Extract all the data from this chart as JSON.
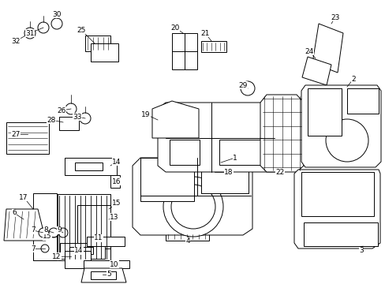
{
  "bg_color": "#ffffff",
  "line_color": "#000000",
  "font_size": 6.5,
  "line_width": 0.7,
  "dpi": 100,
  "figsize": [
    4.89,
    3.6
  ]
}
